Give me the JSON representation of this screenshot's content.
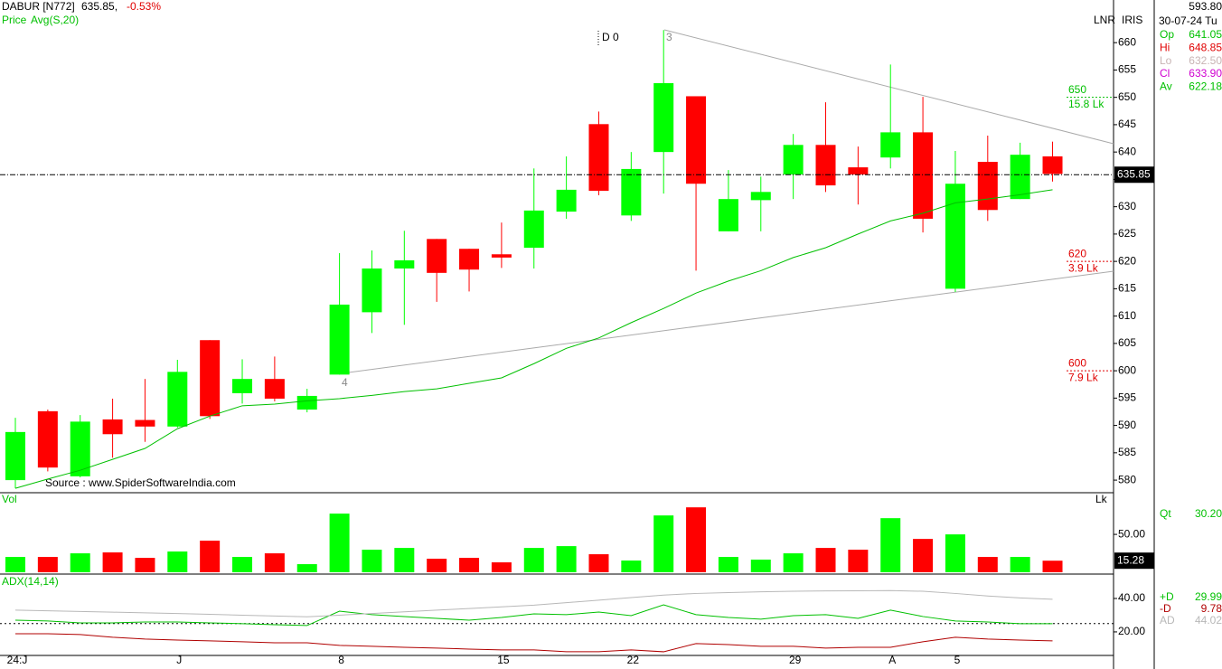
{
  "header": {
    "symbol": "DABUR [N772]",
    "price": "635.85,",
    "change": "-0.53%"
  },
  "info_panel": {
    "tags": [
      "LNR",
      "IRIS"
    ],
    "top": "593.80",
    "date": "30-07-24 Tu",
    "rows": [
      {
        "label": "Op",
        "value": "641.05",
        "color": "#00c000"
      },
      {
        "label": "Hi",
        "value": "648.85",
        "color": "#e00000"
      },
      {
        "label": "Lo",
        "value": "632.50",
        "color": "#c8b4b4"
      },
      {
        "label": "Cl",
        "value": "633.90",
        "color": "#d000d0"
      },
      {
        "label": "Av",
        "value": "622.18",
        "color": "#00c000"
      }
    ]
  },
  "source": "Source : www.SpiderSoftwareIndia.com",
  "chart_data": [
    {
      "type": "candlestick",
      "price_label": "Price",
      "up_color": "#00ff00",
      "down_color": "#ff0000",
      "categories": [
        "24:J",
        null,
        null,
        null,
        null,
        "J",
        null,
        null,
        null,
        null,
        "8",
        null,
        null,
        null,
        null,
        "15",
        null,
        null,
        null,
        "22",
        null,
        null,
        null,
        null,
        "29",
        null,
        null,
        "A",
        null,
        "5",
        null,
        null,
        null
      ],
      "open": [
        580,
        592.6,
        580.7,
        591.1,
        591,
        589.8,
        605.6,
        595.9,
        598.5,
        592.9,
        599.3,
        610.7,
        618.7,
        624.1,
        622.3,
        621.3,
        622.5,
        629.1,
        645.1,
        628.4,
        640,
        650.2,
        625.5,
        631.2,
        635.9,
        641.3,
        637.2,
        639,
        643.6,
        615,
        638.2,
        631.4,
        639.2
      ],
      "high": [
        591.4,
        592.9,
        591.9,
        594.9,
        598.5,
        602,
        605.6,
        602.1,
        602.6,
        596.7,
        621.5,
        622,
        625.6,
        624.1,
        622.3,
        627.1,
        637,
        639.2,
        647.4,
        640,
        662.3,
        650.2,
        636.7,
        635.5,
        643.3,
        649.1,
        641,
        656,
        650.1,
        640.2,
        643,
        641.7,
        641.9
      ],
      "low": [
        578.5,
        581.6,
        580.5,
        584.1,
        587,
        589.6,
        591.2,
        594,
        594.4,
        592.4,
        599.3,
        606.9,
        608.4,
        612.6,
        614.5,
        618.8,
        618.7,
        627.8,
        632.1,
        627.4,
        632.4,
        618.3,
        625.5,
        625.5,
        631.4,
        632.7,
        630.4,
        637,
        625.3,
        614.4,
        627.4,
        631.4,
        634.6
      ],
      "close": [
        588.8,
        582.3,
        590.7,
        588.4,
        589.8,
        599.8,
        591.7,
        598.5,
        594.9,
        595.4,
        612.1,
        618.7,
        620.2,
        617.9,
        618.5,
        620.7,
        629.3,
        633.1,
        632.9,
        636.9,
        652.6,
        634.2,
        631.4,
        632.7,
        641.3,
        633.9,
        635.9,
        643.6,
        627.8,
        634.2,
        629.4,
        639.5,
        636
      ],
      "overlay": {
        "name": "Avg(S,20)",
        "color": "#00c000",
        "values": [
          578.5,
          580.2,
          581.8,
          583.8,
          585.8,
          589.4,
          591.7,
          593.6,
          593.9,
          594.5,
          594.9,
          595.5,
          596.2,
          596.7,
          597.7,
          598.7,
          601.3,
          604.1,
          606,
          608.8,
          611.4,
          614.2,
          616.4,
          618.3,
          620.7,
          622.5,
          625,
          627.4,
          628.8,
          630.7,
          631.4,
          632.2,
          633.1
        ]
      },
      "last_price": 635.85,
      "levels": [
        {
          "value": 650,
          "note": "15.8 Lk",
          "color": "#00c000"
        },
        {
          "value": 620,
          "note": "3.9 Lk",
          "color": "#e00000"
        },
        {
          "value": 600,
          "note": "7.9 Lk",
          "color": "#e00000"
        }
      ],
      "annotations": [
        "D 0",
        "3",
        "4"
      ],
      "ylim": [
        577.7,
        667.8
      ],
      "yticks": [
        580,
        585,
        590,
        595,
        600,
        605,
        610,
        615,
        620,
        625,
        630,
        635,
        640,
        645,
        650,
        655,
        660
      ]
    },
    {
      "type": "bar",
      "title": "Vol",
      "unit": "Lk",
      "readout": {
        "label": "Qt",
        "value": "30.20"
      },
      "values": [
        20.2,
        20.2,
        25,
        26.2,
        19,
        27.4,
        41.7,
        20.2,
        25,
        10.7,
        77.4,
        29.8,
        32.1,
        17.9,
        19,
        13.1,
        32.1,
        34.5,
        23.8,
        15.5,
        75,
        85.7,
        20.2,
        16.7,
        25,
        32.1,
        29.8,
        71.4,
        44,
        50,
        20.2,
        20.2,
        15.28
      ],
      "ylim": [
        0,
        105
      ],
      "yticks": [
        {
          "value": 50,
          "label": "50.00"
        }
      ]
    },
    {
      "type": "line",
      "title": "ADX(14,14)",
      "threshold": 25,
      "series": [
        {
          "name": "+D",
          "color": "#00c000",
          "legend_value": "29.99",
          "values": [
            27,
            26.5,
            25.4,
            25.4,
            25.9,
            25.9,
            25.4,
            24.9,
            24.3,
            23.8,
            32.4,
            30.3,
            29.2,
            28.1,
            27,
            28.6,
            30.8,
            30.3,
            31.9,
            29.7,
            36.2,
            30.3,
            28.6,
            27.6,
            29.7,
            30.3,
            28.1,
            33,
            29.2,
            26.5,
            25.9,
            24.9,
            24.9
          ]
        },
        {
          "name": "-D",
          "color": "#b00000",
          "legend_value": "9.78",
          "values": [
            18.9,
            18.9,
            18.4,
            16.8,
            15.7,
            15.1,
            14.6,
            14.1,
            13.5,
            13.5,
            11.9,
            11.4,
            10.8,
            10.3,
            9.7,
            9.2,
            9.2,
            8.1,
            8.1,
            9.2,
            8.1,
            13,
            12.4,
            11.4,
            11.4,
            10.3,
            10.8,
            10.8,
            14.1,
            16.8,
            15.7,
            15.1,
            14.6
          ]
        },
        {
          "name": "AD",
          "color": "#b8b8b8",
          "legend_value": "44.02",
          "values": [
            33,
            32.6,
            32.2,
            31.8,
            31.4,
            31,
            30.5,
            30,
            29.5,
            29,
            30,
            31,
            32,
            33,
            34,
            35,
            36,
            37.5,
            39,
            40.5,
            42,
            43,
            43.5,
            44,
            44.3,
            44.5,
            44.6,
            44.7,
            44.3,
            43,
            41.5,
            40.3,
            39.5
          ]
        }
      ],
      "ylim": [
        5.9,
        54.6
      ],
      "yticks": [
        {
          "value": 40,
          "label": "40.00"
        },
        {
          "value": 20,
          "label": "20.00"
        }
      ]
    }
  ]
}
